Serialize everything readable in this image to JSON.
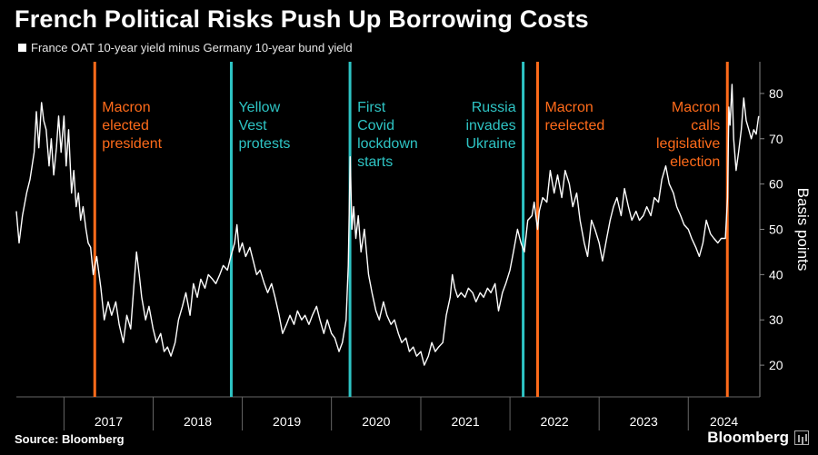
{
  "header": {
    "title": "French Political Risks Push Up Borrowing Costs"
  },
  "footer": {
    "source": "Source: Bloomberg",
    "brand": "Bloomberg"
  },
  "colors": {
    "background": "#000000",
    "series": "#ffffff",
    "orange_event": "#ff6b1a",
    "cyan_event": "#2ec4c4"
  },
  "chart_data": {
    "type": "line",
    "title": "French Political Risks Push Up Borrowing Costs",
    "ylabel": "Basis points",
    "xlabel": "",
    "ylim": [
      13,
      87
    ],
    "xlim": [
      "2016-06-20",
      "2024-10-20"
    ],
    "yticks": [
      20,
      30,
      40,
      50,
      60,
      70,
      80
    ],
    "xticks": [
      "2017",
      "2018",
      "2019",
      "2020",
      "2021",
      "2022",
      "2023",
      "2024"
    ],
    "grid": false,
    "legend": "top-left",
    "series": [
      {
        "name": "France OAT 10-year yield minus Germany 10-year bund yield",
        "color": "#ffffff",
        "points": [
          [
            "2016-06-20",
            54
          ],
          [
            "2016-07-01",
            47
          ],
          [
            "2016-07-15",
            53
          ],
          [
            "2016-08-01",
            58
          ],
          [
            "2016-08-15",
            61
          ],
          [
            "2016-09-01",
            67
          ],
          [
            "2016-09-10",
            76
          ],
          [
            "2016-09-20",
            68
          ],
          [
            "2016-10-01",
            78
          ],
          [
            "2016-10-10",
            74
          ],
          [
            "2016-10-20",
            72
          ],
          [
            "2016-11-01",
            64
          ],
          [
            "2016-11-10",
            70
          ],
          [
            "2016-11-20",
            62
          ],
          [
            "2016-12-01",
            68
          ],
          [
            "2016-12-10",
            75
          ],
          [
            "2016-12-20",
            67
          ],
          [
            "2017-01-01",
            75
          ],
          [
            "2017-01-10",
            64
          ],
          [
            "2017-01-20",
            72
          ],
          [
            "2017-02-01",
            58
          ],
          [
            "2017-02-10",
            63
          ],
          [
            "2017-02-20",
            55
          ],
          [
            "2017-03-01",
            58
          ],
          [
            "2017-03-10",
            52
          ],
          [
            "2017-03-20",
            55
          ],
          [
            "2017-04-01",
            50
          ],
          [
            "2017-04-10",
            47
          ],
          [
            "2017-04-20",
            46
          ],
          [
            "2017-05-01",
            40
          ],
          [
            "2017-05-15",
            44
          ],
          [
            "2017-06-01",
            37
          ],
          [
            "2017-06-15",
            30
          ],
          [
            "2017-07-01",
            34
          ],
          [
            "2017-07-15",
            31
          ],
          [
            "2017-08-01",
            34
          ],
          [
            "2017-08-15",
            29
          ],
          [
            "2017-09-01",
            25
          ],
          [
            "2017-09-15",
            31
          ],
          [
            "2017-10-01",
            28
          ],
          [
            "2017-10-15",
            38
          ],
          [
            "2017-10-25",
            45
          ],
          [
            "2017-11-05",
            40
          ],
          [
            "2017-11-15",
            35
          ],
          [
            "2017-12-01",
            30
          ],
          [
            "2017-12-15",
            33
          ],
          [
            "2018-01-01",
            28
          ],
          [
            "2018-01-15",
            25
          ],
          [
            "2018-02-01",
            27
          ],
          [
            "2018-02-15",
            23
          ],
          [
            "2018-03-01",
            24
          ],
          [
            "2018-03-15",
            22
          ],
          [
            "2018-04-01",
            25
          ],
          [
            "2018-04-15",
            30
          ],
          [
            "2018-05-01",
            33
          ],
          [
            "2018-05-15",
            36
          ],
          [
            "2018-06-01",
            31
          ],
          [
            "2018-06-15",
            38
          ],
          [
            "2018-07-01",
            35
          ],
          [
            "2018-07-15",
            39
          ],
          [
            "2018-08-01",
            37
          ],
          [
            "2018-08-15",
            40
          ],
          [
            "2018-09-01",
            39
          ],
          [
            "2018-09-15",
            38
          ],
          [
            "2018-10-01",
            40
          ],
          [
            "2018-10-15",
            42
          ],
          [
            "2018-11-01",
            41
          ],
          [
            "2018-11-15",
            44
          ],
          [
            "2018-12-01",
            47
          ],
          [
            "2018-12-10",
            51
          ],
          [
            "2018-12-20",
            45
          ],
          [
            "2019-01-01",
            47
          ],
          [
            "2019-01-15",
            44
          ],
          [
            "2019-02-01",
            46
          ],
          [
            "2019-02-15",
            43
          ],
          [
            "2019-03-01",
            40
          ],
          [
            "2019-03-15",
            41
          ],
          [
            "2019-04-01",
            38
          ],
          [
            "2019-04-15",
            36
          ],
          [
            "2019-05-01",
            38
          ],
          [
            "2019-05-15",
            35
          ],
          [
            "2019-06-01",
            31
          ],
          [
            "2019-06-15",
            27
          ],
          [
            "2019-07-01",
            29
          ],
          [
            "2019-07-15",
            31
          ],
          [
            "2019-08-01",
            29
          ],
          [
            "2019-08-15",
            32
          ],
          [
            "2019-09-01",
            30
          ],
          [
            "2019-09-15",
            31
          ],
          [
            "2019-10-01",
            29
          ],
          [
            "2019-10-15",
            31
          ],
          [
            "2019-11-01",
            33
          ],
          [
            "2019-11-15",
            30
          ],
          [
            "2019-12-01",
            27
          ],
          [
            "2019-12-15",
            30
          ],
          [
            "2020-01-01",
            27
          ],
          [
            "2020-01-15",
            26
          ],
          [
            "2020-02-01",
            23
          ],
          [
            "2020-02-15",
            25
          ],
          [
            "2020-03-01",
            30
          ],
          [
            "2020-03-10",
            42
          ],
          [
            "2020-03-18",
            66
          ],
          [
            "2020-03-25",
            50
          ],
          [
            "2020-04-01",
            55
          ],
          [
            "2020-04-10",
            48
          ],
          [
            "2020-04-20",
            53
          ],
          [
            "2020-05-01",
            45
          ],
          [
            "2020-05-15",
            50
          ],
          [
            "2020-06-01",
            40
          ],
          [
            "2020-06-15",
            36
          ],
          [
            "2020-07-01",
            32
          ],
          [
            "2020-07-15",
            30
          ],
          [
            "2020-08-01",
            34
          ],
          [
            "2020-08-15",
            31
          ],
          [
            "2020-09-01",
            29
          ],
          [
            "2020-09-15",
            30
          ],
          [
            "2020-10-01",
            27
          ],
          [
            "2020-10-15",
            25
          ],
          [
            "2020-11-01",
            26
          ],
          [
            "2020-11-15",
            23
          ],
          [
            "2020-12-01",
            24
          ],
          [
            "2020-12-15",
            22
          ],
          [
            "2021-01-01",
            23
          ],
          [
            "2021-01-15",
            20
          ],
          [
            "2021-02-01",
            22
          ],
          [
            "2021-02-15",
            25
          ],
          [
            "2021-03-01",
            23
          ],
          [
            "2021-03-15",
            24
          ],
          [
            "2021-04-01",
            25
          ],
          [
            "2021-04-15",
            31
          ],
          [
            "2021-05-01",
            35
          ],
          [
            "2021-05-10",
            40
          ],
          [
            "2021-05-20",
            37
          ],
          [
            "2021-06-01",
            35
          ],
          [
            "2021-06-15",
            36
          ],
          [
            "2021-07-01",
            35
          ],
          [
            "2021-07-15",
            37
          ],
          [
            "2021-08-01",
            36
          ],
          [
            "2021-08-15",
            34
          ],
          [
            "2021-09-01",
            36
          ],
          [
            "2021-09-15",
            35
          ],
          [
            "2021-10-01",
            37
          ],
          [
            "2021-10-15",
            36
          ],
          [
            "2021-11-01",
            38
          ],
          [
            "2021-11-15",
            32
          ],
          [
            "2021-12-01",
            36
          ],
          [
            "2021-12-15",
            38
          ],
          [
            "2022-01-01",
            41
          ],
          [
            "2022-01-15",
            45
          ],
          [
            "2022-02-01",
            50
          ],
          [
            "2022-02-15",
            47
          ],
          [
            "2022-03-01",
            45
          ],
          [
            "2022-03-15",
            52
          ],
          [
            "2022-04-01",
            53
          ],
          [
            "2022-04-10",
            56
          ],
          [
            "2022-04-24",
            50
          ],
          [
            "2022-05-01",
            54
          ],
          [
            "2022-05-15",
            57
          ],
          [
            "2022-06-01",
            56
          ],
          [
            "2022-06-15",
            63
          ],
          [
            "2022-07-01",
            58
          ],
          [
            "2022-07-15",
            62
          ],
          [
            "2022-08-01",
            57
          ],
          [
            "2022-08-15",
            63
          ],
          [
            "2022-09-01",
            60
          ],
          [
            "2022-09-15",
            55
          ],
          [
            "2022-10-01",
            58
          ],
          [
            "2022-10-15",
            52
          ],
          [
            "2022-11-01",
            47
          ],
          [
            "2022-11-15",
            44
          ],
          [
            "2022-12-01",
            52
          ],
          [
            "2022-12-15",
            50
          ],
          [
            "2023-01-01",
            47
          ],
          [
            "2023-01-15",
            43
          ],
          [
            "2023-02-01",
            48
          ],
          [
            "2023-02-15",
            52
          ],
          [
            "2023-03-01",
            55
          ],
          [
            "2023-03-15",
            57
          ],
          [
            "2023-04-01",
            53
          ],
          [
            "2023-04-15",
            59
          ],
          [
            "2023-05-01",
            55
          ],
          [
            "2023-05-15",
            52
          ],
          [
            "2023-06-01",
            54
          ],
          [
            "2023-06-15",
            52
          ],
          [
            "2023-07-01",
            53
          ],
          [
            "2023-07-15",
            55
          ],
          [
            "2023-08-01",
            53
          ],
          [
            "2023-08-15",
            57
          ],
          [
            "2023-09-01",
            56
          ],
          [
            "2023-09-15",
            61
          ],
          [
            "2023-10-01",
            64
          ],
          [
            "2023-10-15",
            60
          ],
          [
            "2023-11-01",
            58
          ],
          [
            "2023-11-15",
            55
          ],
          [
            "2023-12-01",
            53
          ],
          [
            "2023-12-15",
            51
          ],
          [
            "2024-01-01",
            50
          ],
          [
            "2024-01-15",
            48
          ],
          [
            "2024-02-01",
            46
          ],
          [
            "2024-02-15",
            44
          ],
          [
            "2024-03-01",
            47
          ],
          [
            "2024-03-15",
            52
          ],
          [
            "2024-04-01",
            49
          ],
          [
            "2024-04-15",
            48
          ],
          [
            "2024-05-01",
            47
          ],
          [
            "2024-05-15",
            48
          ],
          [
            "2024-06-01",
            48
          ],
          [
            "2024-06-10",
            57
          ],
          [
            "2024-06-15",
            77
          ],
          [
            "2024-06-20",
            73
          ],
          [
            "2024-06-28",
            82
          ],
          [
            "2024-07-05",
            70
          ],
          [
            "2024-07-15",
            63
          ],
          [
            "2024-07-25",
            67
          ],
          [
            "2024-08-05",
            72
          ],
          [
            "2024-08-15",
            79
          ],
          [
            "2024-08-25",
            74
          ],
          [
            "2024-09-05",
            72
          ],
          [
            "2024-09-15",
            70
          ],
          [
            "2024-09-25",
            72
          ],
          [
            "2024-10-05",
            71
          ],
          [
            "2024-10-15",
            75
          ]
        ]
      }
    ],
    "events": [
      {
        "date": "2017-05-07",
        "label": [
          "Macron",
          "elected",
          "president"
        ],
        "color": "#ff6b1a",
        "align": "right"
      },
      {
        "date": "2018-11-17",
        "label": [
          "Yellow",
          "Vest",
          "protests"
        ],
        "color": "#2ec4c4",
        "align": "right"
      },
      {
        "date": "2020-03-17",
        "label": [
          "First",
          "Covid",
          "lockdown",
          "starts"
        ],
        "color": "#2ec4c4",
        "align": "right"
      },
      {
        "date": "2022-02-24",
        "label": [
          "Russia",
          "invades",
          "Ukraine"
        ],
        "color": "#2ec4c4",
        "align": "left"
      },
      {
        "date": "2022-04-24",
        "label": [
          "Macron",
          "reelected"
        ],
        "color": "#ff6b1a",
        "align": "right"
      },
      {
        "date": "2024-06-09",
        "label": [
          "Macron",
          "calls",
          "legislative",
          "election"
        ],
        "color": "#ff6b1a",
        "align": "left"
      }
    ]
  }
}
